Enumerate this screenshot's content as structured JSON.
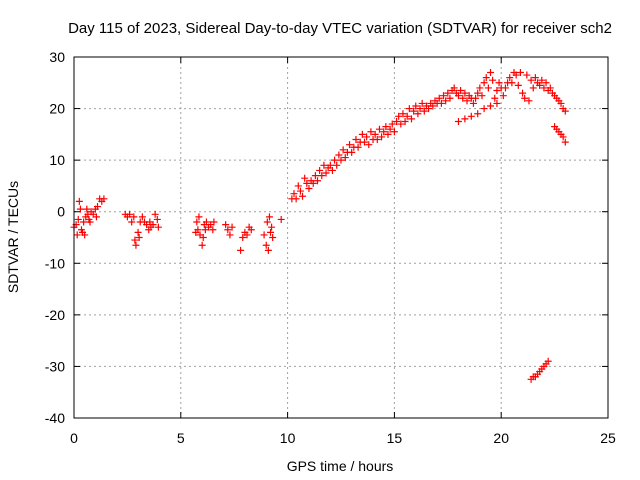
{
  "chart_data": {
    "type": "scatter",
    "title": "Day 115 of 2023, Sidereal Day-to-day VTEC variation (SDTVAR) for receiver sch2",
    "xlabel": "GPS time / hours",
    "ylabel": "SDTVAR / TECUs",
    "xlim": [
      0,
      25
    ],
    "ylim": [
      -40,
      30
    ],
    "xticks": [
      0,
      5,
      10,
      15,
      20,
      25
    ],
    "yticks": [
      -40,
      -30,
      -20,
      -10,
      0,
      10,
      20,
      30
    ],
    "xtick_labels": [
      "0",
      "5",
      "10",
      "15",
      "20",
      "25"
    ],
    "ytick_labels": [
      "-40",
      "-30",
      "-20",
      "-10",
      "0",
      "10",
      "20",
      "30"
    ],
    "grid": true,
    "marker": "plus",
    "series": [
      {
        "name": "SDTVAR",
        "color": "#ff0000",
        "points": [
          [
            0.0,
            -3.0
          ],
          [
            0.1,
            -2.5
          ],
          [
            0.15,
            -4.5
          ],
          [
            0.2,
            -1.5
          ],
          [
            0.25,
            2.0
          ],
          [
            0.3,
            0.5
          ],
          [
            0.35,
            -3.5
          ],
          [
            0.4,
            -4.0
          ],
          [
            0.45,
            -2.0
          ],
          [
            0.5,
            -4.5
          ],
          [
            0.55,
            -1.0
          ],
          [
            0.6,
            0.5
          ],
          [
            0.65,
            -0.5
          ],
          [
            0.7,
            -1.5
          ],
          [
            0.75,
            -2.0
          ],
          [
            0.8,
            0.0
          ],
          [
            0.9,
            -0.5
          ],
          [
            1.0,
            0.5
          ],
          [
            1.05,
            -1.0
          ],
          [
            1.1,
            1.0
          ],
          [
            1.2,
            2.5
          ],
          [
            1.3,
            2.0
          ],
          [
            1.4,
            2.5
          ],
          [
            2.4,
            -0.5
          ],
          [
            2.5,
            -1.0
          ],
          [
            2.6,
            -0.5
          ],
          [
            2.7,
            -2.0
          ],
          [
            2.8,
            -1.0
          ],
          [
            2.85,
            -5.5
          ],
          [
            2.9,
            -6.5
          ],
          [
            3.0,
            -4.0
          ],
          [
            3.05,
            -5.0
          ],
          [
            3.1,
            -2.0
          ],
          [
            3.2,
            -1.0
          ],
          [
            3.3,
            -2.0
          ],
          [
            3.4,
            -2.5
          ],
          [
            3.5,
            -3.5
          ],
          [
            3.55,
            -2.0
          ],
          [
            3.6,
            -3.0
          ],
          [
            3.7,
            -2.5
          ],
          [
            3.8,
            -0.5
          ],
          [
            3.9,
            -1.5
          ],
          [
            3.95,
            -3.0
          ],
          [
            5.7,
            -4.0
          ],
          [
            5.75,
            -2.0
          ],
          [
            5.8,
            -3.5
          ],
          [
            5.85,
            -1.0
          ],
          [
            5.9,
            -4.5
          ],
          [
            6.0,
            -6.5
          ],
          [
            6.05,
            -5.0
          ],
          [
            6.1,
            -2.5
          ],
          [
            6.15,
            -3.5
          ],
          [
            6.2,
            -2.0
          ],
          [
            6.3,
            -3.0
          ],
          [
            6.4,
            -2.5
          ],
          [
            6.5,
            -3.5
          ],
          [
            6.55,
            -2.0
          ],
          [
            7.1,
            -2.5
          ],
          [
            7.2,
            -3.5
          ],
          [
            7.3,
            -4.5
          ],
          [
            7.4,
            -3.0
          ],
          [
            7.8,
            -7.5
          ],
          [
            7.9,
            -5.0
          ],
          [
            8.0,
            -4.0
          ],
          [
            8.1,
            -4.5
          ],
          [
            8.2,
            -3.0
          ],
          [
            8.3,
            -3.5
          ],
          [
            8.9,
            -4.5
          ],
          [
            9.0,
            -6.5
          ],
          [
            9.05,
            -2.0
          ],
          [
            9.1,
            -7.5
          ],
          [
            9.15,
            -1.0
          ],
          [
            9.2,
            -4.0
          ],
          [
            9.25,
            -3.0
          ],
          [
            9.3,
            -5.0
          ],
          [
            9.7,
            -1.5
          ],
          [
            10.2,
            2.5
          ],
          [
            10.3,
            3.5
          ],
          [
            10.4,
            2.5
          ],
          [
            10.5,
            5.0
          ],
          [
            10.6,
            4.0
          ],
          [
            10.7,
            3.0
          ],
          [
            10.8,
            6.5
          ],
          [
            10.9,
            5.5
          ],
          [
            11.0,
            4.5
          ],
          [
            11.1,
            6.0
          ],
          [
            11.2,
            5.5
          ],
          [
            11.3,
            7.0
          ],
          [
            11.4,
            6.0
          ],
          [
            11.5,
            8.0
          ],
          [
            11.6,
            7.0
          ],
          [
            11.7,
            9.0
          ],
          [
            11.8,
            7.5
          ],
          [
            11.9,
            8.5
          ],
          [
            12.0,
            9.0
          ],
          [
            12.1,
            8.0
          ],
          [
            12.2,
            10.0
          ],
          [
            12.3,
            9.0
          ],
          [
            12.4,
            11.0
          ],
          [
            12.5,
            10.0
          ],
          [
            12.6,
            12.0
          ],
          [
            12.7,
            10.5
          ],
          [
            12.8,
            11.5
          ],
          [
            12.9,
            13.0
          ],
          [
            13.0,
            11.5
          ],
          [
            13.1,
            12.5
          ],
          [
            13.2,
            14.0
          ],
          [
            13.3,
            12.5
          ],
          [
            13.4,
            13.5
          ],
          [
            13.5,
            15.0
          ],
          [
            13.6,
            13.5
          ],
          [
            13.7,
            14.5
          ],
          [
            13.8,
            13.0
          ],
          [
            13.9,
            15.5
          ],
          [
            14.0,
            14.0
          ],
          [
            14.1,
            15.0
          ],
          [
            14.2,
            14.0
          ],
          [
            14.3,
            16.0
          ],
          [
            14.4,
            14.5
          ],
          [
            14.5,
            15.5
          ],
          [
            14.6,
            16.5
          ],
          [
            14.7,
            15.0
          ],
          [
            14.8,
            16.0
          ],
          [
            14.9,
            17.0
          ],
          [
            15.0,
            15.5
          ],
          [
            15.1,
            17.5
          ],
          [
            15.2,
            18.5
          ],
          [
            15.3,
            17.0
          ],
          [
            15.4,
            19.0
          ],
          [
            15.5,
            17.5
          ],
          [
            15.6,
            18.5
          ],
          [
            15.7,
            20.0
          ],
          [
            15.8,
            18.0
          ],
          [
            15.9,
            19.5
          ],
          [
            16.0,
            20.5
          ],
          [
            16.1,
            19.0
          ],
          [
            16.2,
            20.0
          ],
          [
            16.3,
            21.0
          ],
          [
            16.4,
            19.5
          ],
          [
            16.5,
            20.5
          ],
          [
            16.6,
            20.0
          ],
          [
            16.7,
            21.0
          ],
          [
            16.8,
            20.5
          ],
          [
            16.9,
            21.5
          ],
          [
            17.0,
            21.0
          ],
          [
            17.1,
            22.0
          ],
          [
            17.2,
            21.0
          ],
          [
            17.3,
            22.5
          ],
          [
            17.4,
            21.5
          ],
          [
            17.5,
            23.0
          ],
          [
            17.6,
            22.0
          ],
          [
            17.7,
            23.5
          ],
          [
            17.8,
            24.0
          ],
          [
            17.9,
            23.0
          ],
          [
            18.0,
            22.5
          ],
          [
            18.1,
            23.5
          ],
          [
            18.2,
            22.0
          ],
          [
            18.3,
            23.0
          ],
          [
            18.4,
            21.5
          ],
          [
            18.5,
            22.5
          ],
          [
            18.6,
            22.0
          ],
          [
            18.7,
            21.0
          ],
          [
            18.8,
            22.0
          ],
          [
            18.9,
            23.0
          ],
          [
            19.0,
            24.0
          ],
          [
            19.1,
            22.5
          ],
          [
            19.2,
            25.0
          ],
          [
            19.3,
            26.0
          ],
          [
            19.4,
            24.0
          ],
          [
            19.5,
            27.0
          ],
          [
            19.6,
            25.5
          ],
          [
            19.7,
            22.0
          ],
          [
            19.8,
            23.5
          ],
          [
            19.9,
            25.0
          ],
          [
            20.0,
            24.0
          ],
          [
            20.1,
            22.5
          ],
          [
            20.2,
            24.0
          ],
          [
            20.3,
            25.0
          ],
          [
            20.4,
            26.0
          ],
          [
            20.5,
            25.0
          ],
          [
            20.6,
            27.0
          ],
          [
            20.7,
            26.5
          ],
          [
            20.8,
            24.5
          ],
          [
            20.9,
            27.0
          ],
          [
            21.0,
            23.0
          ],
          [
            21.1,
            22.0
          ],
          [
            21.2,
            26.5
          ],
          [
            21.3,
            21.5
          ],
          [
            21.4,
            25.5
          ],
          [
            21.5,
            24.0
          ],
          [
            21.6,
            26.0
          ],
          [
            21.7,
            25.0
          ],
          [
            21.8,
            24.5
          ],
          [
            21.9,
            25.5
          ],
          [
            22.0,
            24.0
          ],
          [
            22.1,
            25.0
          ],
          [
            22.2,
            23.5
          ],
          [
            22.3,
            24.0
          ],
          [
            22.4,
            23.0
          ],
          [
            22.5,
            22.5
          ],
          [
            22.6,
            22.0
          ],
          [
            22.7,
            21.5
          ],
          [
            22.8,
            21.0
          ],
          [
            22.9,
            20.0
          ],
          [
            23.0,
            19.5
          ],
          [
            18.0,
            17.5
          ],
          [
            18.3,
            18.0
          ],
          [
            18.6,
            18.5
          ],
          [
            18.9,
            19.0
          ],
          [
            19.2,
            20.0
          ],
          [
            19.5,
            20.5
          ],
          [
            19.8,
            21.0
          ],
          [
            22.5,
            16.5
          ],
          [
            22.6,
            16.0
          ],
          [
            22.7,
            15.5
          ],
          [
            22.8,
            15.0
          ],
          [
            22.9,
            14.5
          ],
          [
            23.0,
            13.5
          ],
          [
            21.4,
            -32.5
          ],
          [
            21.5,
            -32.0
          ],
          [
            21.6,
            -32.0
          ],
          [
            21.7,
            -31.5
          ],
          [
            21.8,
            -31.0
          ],
          [
            21.9,
            -30.5
          ],
          [
            22.0,
            -30.0
          ],
          [
            22.1,
            -29.5
          ],
          [
            22.2,
            -29.0
          ]
        ]
      }
    ]
  }
}
